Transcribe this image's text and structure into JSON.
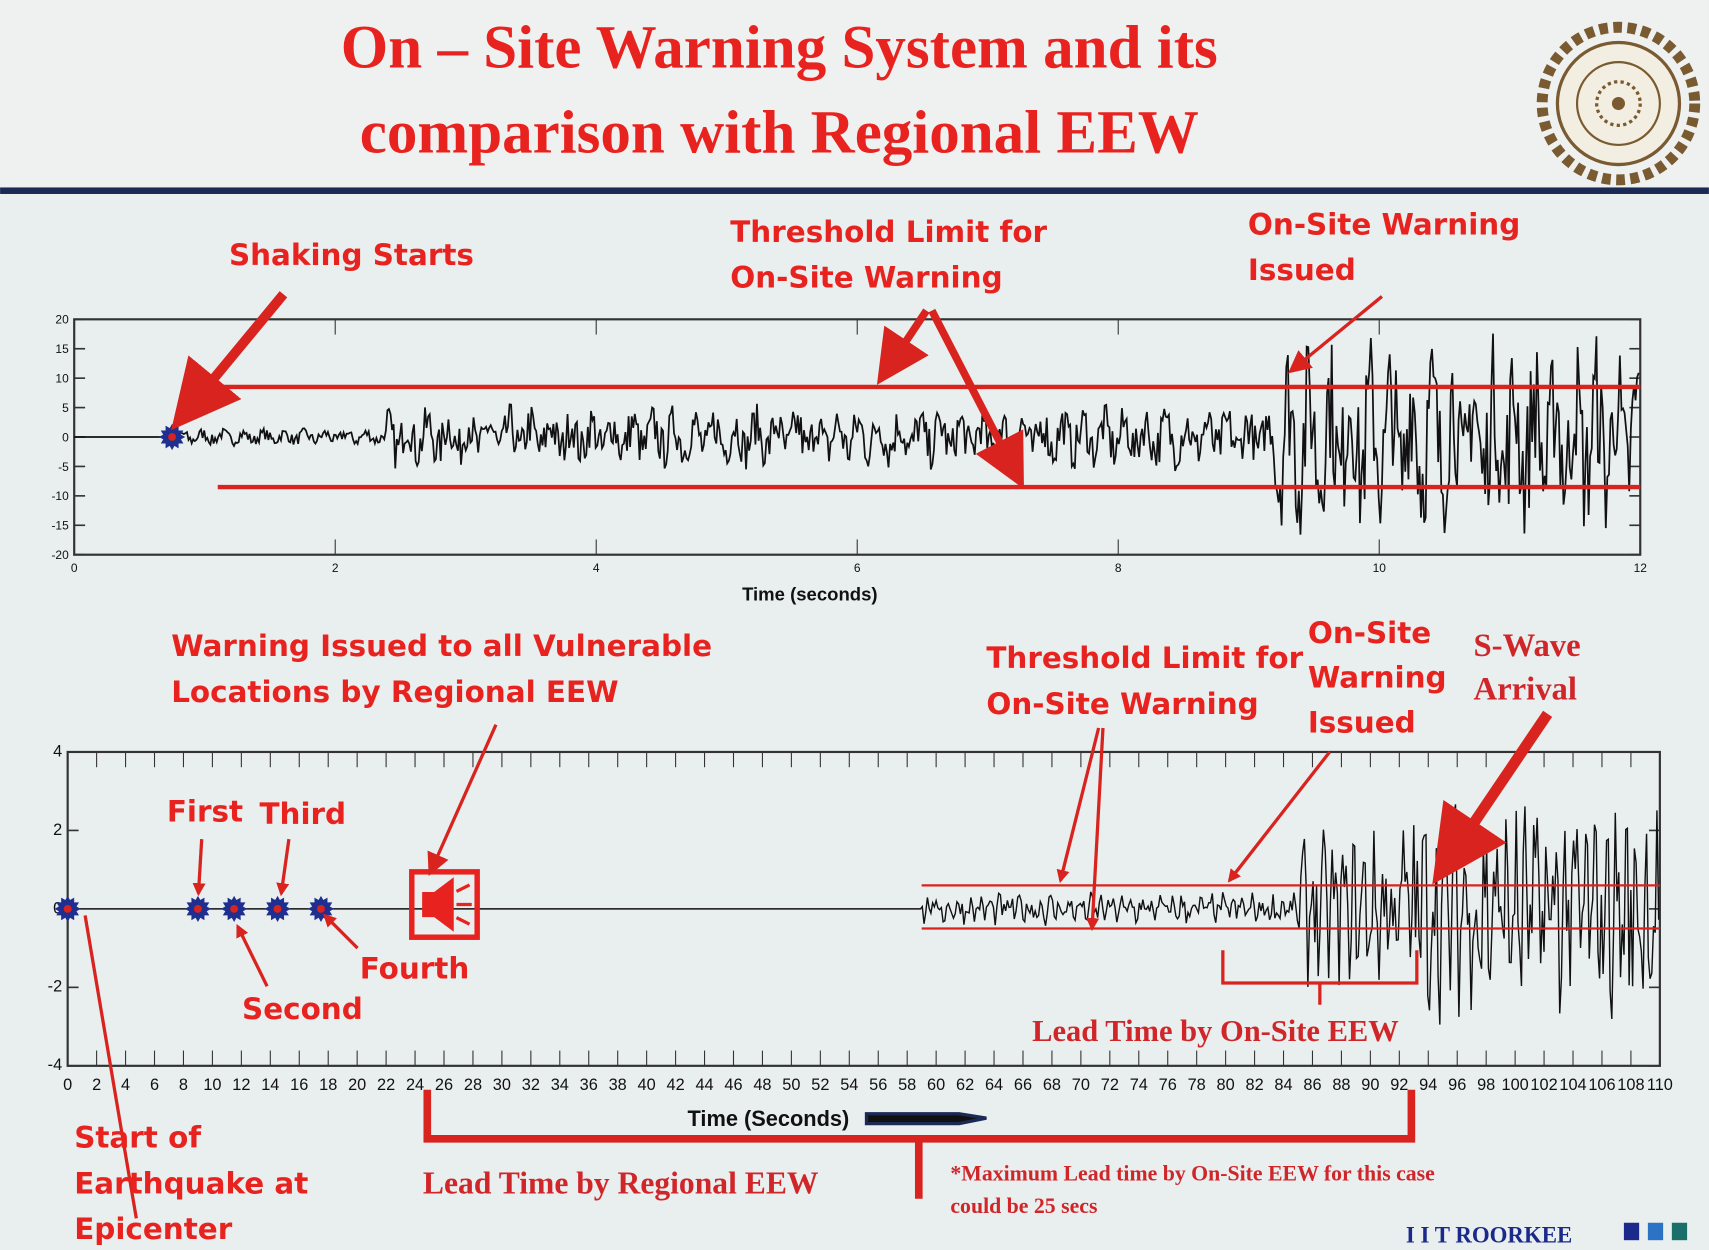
{
  "slide": {
    "title_line1": "On – Site Warning System and its",
    "title_line2": "comparison with Regional EEW",
    "footer_brand": "I I T ROORKEE",
    "colors": {
      "accent_red": "#e8231f",
      "header_rule": "#1b2a55",
      "waveform": "#111111",
      "marker": "#1f2f8f"
    }
  },
  "chart_data": [
    {
      "type": "line",
      "xlabel": "Time (seconds)",
      "xlim": [
        0,
        12
      ],
      "ylim": [
        -20,
        20
      ],
      "xticks": [
        "0",
        "2",
        "4",
        "6",
        "8",
        "10",
        "12"
      ],
      "yticks": [
        "20",
        "15",
        "10",
        "5",
        "0",
        "-5",
        "-10",
        "-15",
        "-20"
      ],
      "threshold_upper": 8.5,
      "threshold_lower": -8.5,
      "shaking_start_time": 0.75,
      "warning_issued_time": 9.35,
      "annotations": {
        "shaking": "Shaking Starts",
        "threshold_1": "Threshold Limit for",
        "threshold_2": "On-Site Warning",
        "issued_1": "On-Site Warning",
        "issued_2": "Issued"
      }
    },
    {
      "type": "line",
      "xlabel": "Time (Seconds)",
      "xlim": [
        0,
        110
      ],
      "ylim": [
        -4,
        4
      ],
      "xticks": [
        "0",
        "2",
        "4",
        "6",
        "8",
        "10",
        "12",
        "14",
        "16",
        "18",
        "20",
        "22",
        "24",
        "26",
        "28",
        "30",
        "32",
        "34",
        "36",
        "38",
        "40",
        "42",
        "44",
        "46",
        "48",
        "50",
        "52",
        "54",
        "56",
        "58",
        "60",
        "62",
        "64",
        "66",
        "68",
        "70",
        "72",
        "74",
        "76",
        "78",
        "80",
        "82",
        "84",
        "86",
        "88",
        "90",
        "92",
        "94",
        "96",
        "98",
        "100",
        "102",
        "104",
        "106",
        "108",
        "110"
      ],
      "yticks": [
        "4",
        "2",
        "0",
        "-2",
        "-4"
      ],
      "threshold_upper": 0.6,
      "threshold_lower": -0.5,
      "station_marker_times": [
        0,
        9,
        11.5,
        14.5,
        17.5
      ],
      "regional_warning_time": 24,
      "regional_lead_time_range": [
        25,
        93
      ],
      "onsite_lead_time_range": [
        80,
        93
      ],
      "swave_arrival_time": 94,
      "annotations": {
        "regional_1": "Warning Issued to all Vulnerable",
        "regional_2": "Locations by Regional EEW",
        "threshold_1": "Threshold Limit for",
        "threshold_2": "On-Site Warning",
        "issued_1": "On-Site",
        "issued_2": "Warning",
        "issued_3": "Issued",
        "swave_1": "S-Wave",
        "swave_2": "Arrival",
        "first": "First",
        "second": "Second",
        "third": "Third",
        "fourth": "Fourth",
        "start_1": "Start of",
        "start_2": "Earthquake at",
        "start_3": "Epicenter",
        "lead_onsite": "Lead Time by On-Site EEW",
        "lead_regional": "Lead Time by Regional EEW",
        "note_1": "*Maximum Lead time by On-Site EEW for this case",
        "note_2": "could be 25 secs"
      }
    }
  ]
}
